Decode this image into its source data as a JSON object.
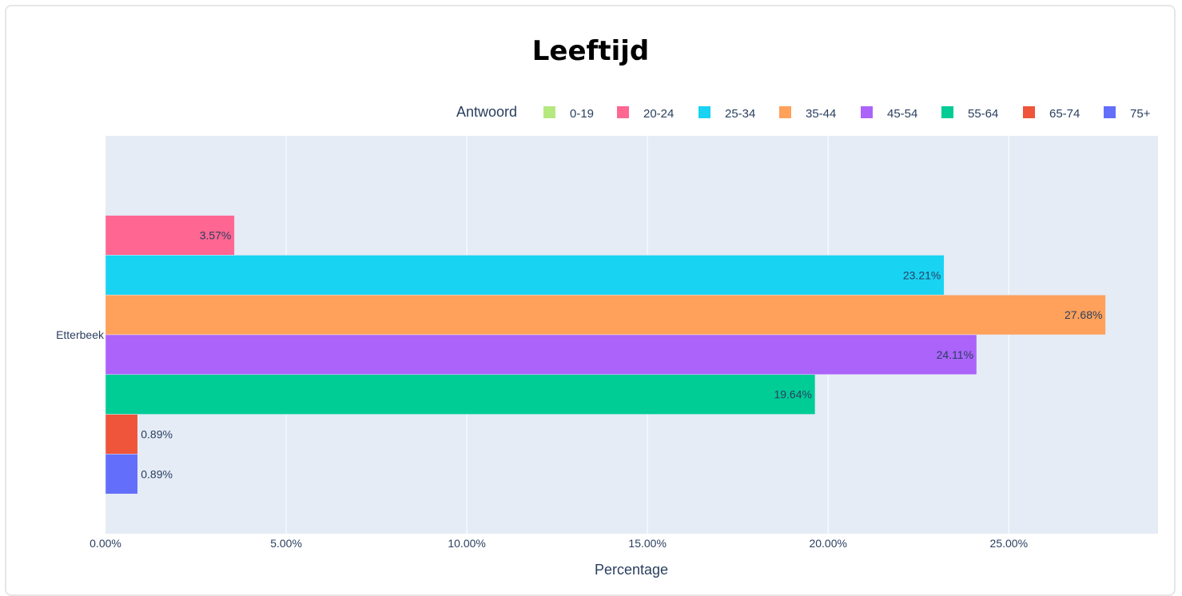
{
  "chart_data": {
    "type": "bar",
    "orientation": "horizontal",
    "title": "Leeftijd",
    "xlabel": "Percentage",
    "ylabel": "",
    "categories": [
      "Etterbeek"
    ],
    "xlim": [
      0,
      29.13
    ],
    "x_ticks": [
      0,
      5,
      10,
      15,
      20,
      25
    ],
    "x_tick_labels": [
      "0.00%",
      "5.00%",
      "10.00%",
      "15.00%",
      "20.00%",
      "25.00%"
    ],
    "grid": true,
    "legend": {
      "title": "Antwoord",
      "placement": "top-right",
      "orientation": "horizontal"
    },
    "series": [
      {
        "name": "0-19",
        "values": [
          0.0
        ],
        "label": "",
        "color": "#B6E880"
      },
      {
        "name": "20-24",
        "values": [
          3.57
        ],
        "label": "3.57%",
        "color": "#FF6692"
      },
      {
        "name": "25-34",
        "values": [
          23.21
        ],
        "label": "23.21%",
        "color": "#19D3F3"
      },
      {
        "name": "35-44",
        "values": [
          27.68
        ],
        "label": "27.68%",
        "color": "#FFA15A"
      },
      {
        "name": "45-54",
        "values": [
          24.11
        ],
        "label": "24.11%",
        "color": "#AB63FA"
      },
      {
        "name": "55-64",
        "values": [
          19.64
        ],
        "label": "19.64%",
        "color": "#00CC96"
      },
      {
        "name": "65-74",
        "values": [
          0.89
        ],
        "label": "0.89%",
        "color": "#EF553B"
      },
      {
        "name": "75+",
        "values": [
          0.89
        ],
        "label": "0.89%",
        "color": "#636EFA"
      }
    ],
    "colors": {
      "plot_bg": "#E5ECF6",
      "grid": "#ffffff",
      "text": "#2a3f5f"
    }
  }
}
